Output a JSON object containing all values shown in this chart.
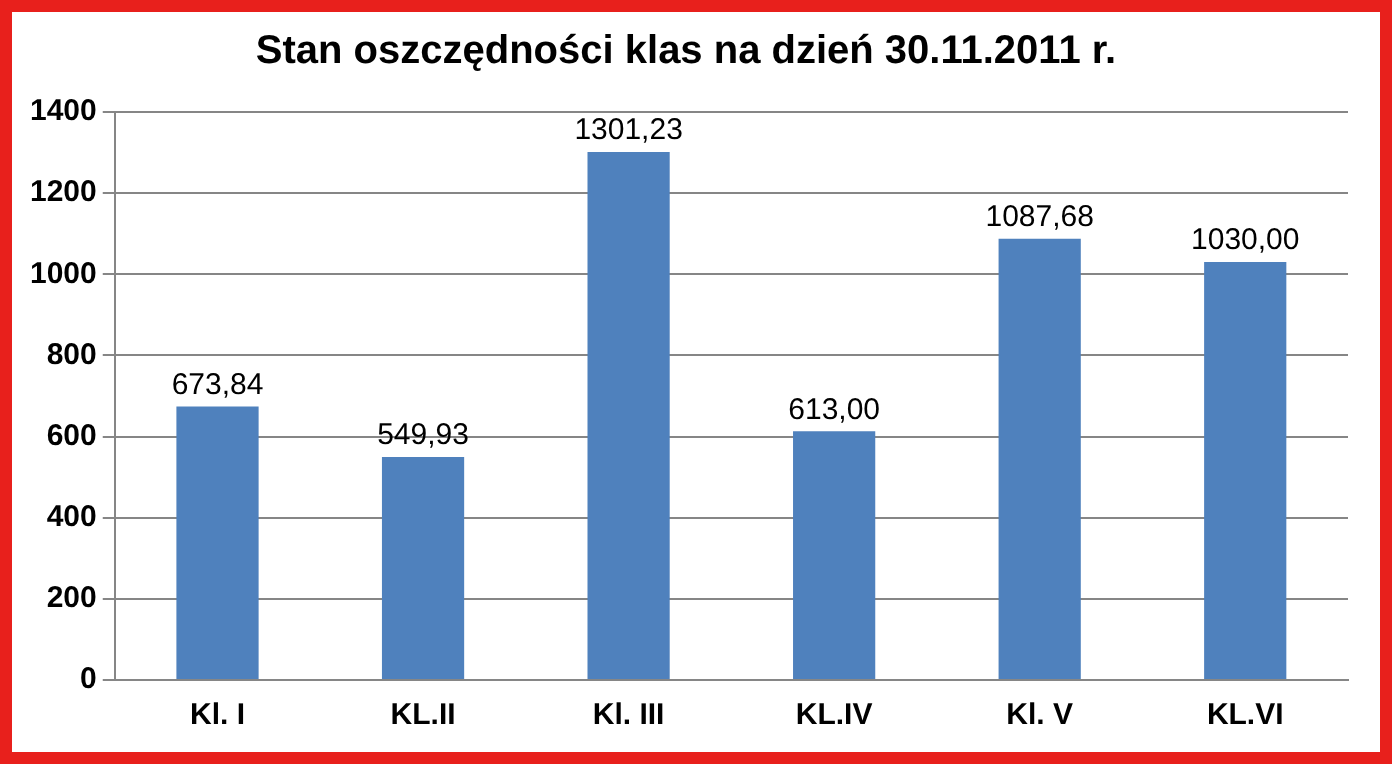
{
  "chart_data": {
    "type": "bar",
    "title": "Stan oszczędności klas na dzień 30.11.2011 r.",
    "categories": [
      "Kl. I",
      "KL.II",
      "Kl. III",
      "KL.IV",
      "Kl. V",
      "KL.VI"
    ],
    "values": [
      673.84,
      549.93,
      1301.23,
      613.0,
      1087.68,
      1030.0
    ],
    "value_labels": [
      "673,84",
      "549,93",
      "1301,23",
      "613,00",
      "1087,68",
      "1030,00"
    ],
    "color": "#4f81bd",
    "ylim": [
      0,
      1400
    ],
    "yticks": [
      0,
      200,
      400,
      600,
      800,
      1000,
      1200,
      1400
    ],
    "grid": "y",
    "legend": false
  }
}
